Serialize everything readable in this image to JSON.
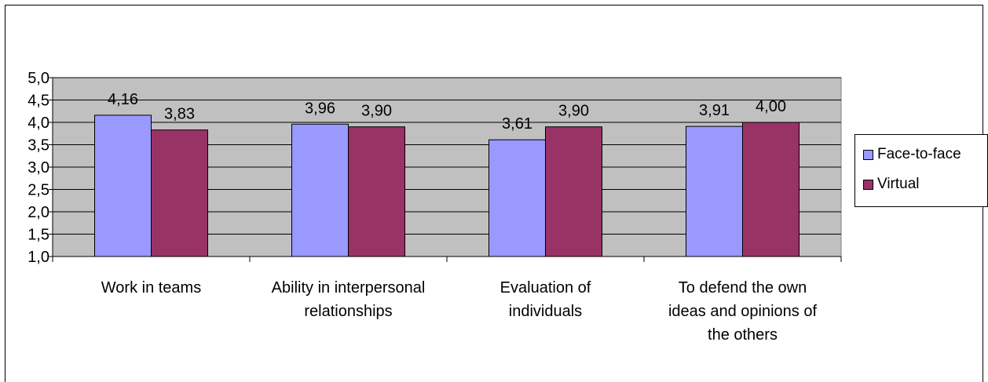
{
  "chart_data": {
    "type": "bar",
    "categories": [
      [
        "Work in teams"
      ],
      [
        "Ability in interpersonal",
        "relationships"
      ],
      [
        "Evaluation of",
        "individuals"
      ],
      [
        "To defend the own",
        "ideas and opinions of",
        "the others"
      ]
    ],
    "series": [
      {
        "name": "Face-to-face",
        "values": [
          4.16,
          3.96,
          3.61,
          3.91
        ],
        "labels": [
          "4,16",
          "3,96",
          "3,61",
          "3,91"
        ],
        "color": "#9999ff"
      },
      {
        "name": "Virtual",
        "values": [
          3.83,
          3.9,
          3.9,
          4.0
        ],
        "labels": [
          "3,83",
          "3,90",
          "3,90",
          "4,00"
        ],
        "color": "#993366"
      }
    ],
    "ylim": [
      1.0,
      5.0
    ],
    "yticks": [
      1.0,
      1.5,
      2.0,
      2.5,
      3.0,
      3.5,
      4.0,
      4.5,
      5.0
    ],
    "ytick_labels": [
      "1,0",
      "1,5",
      "2,0",
      "2,5",
      "3,0",
      "3,5",
      "4,0",
      "4,5",
      "5,0"
    ],
    "plot_background": "#c0c0c0",
    "grid": true,
    "legend_position": "right",
    "title": "",
    "xlabel": "",
    "ylabel": ""
  }
}
